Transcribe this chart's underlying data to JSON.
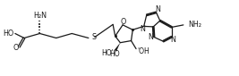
{
  "bg_color": "#ffffff",
  "line_color": "#1a1a1a",
  "line_width": 0.9,
  "font_size": 5.8,
  "figsize": [
    2.67,
    0.85
  ],
  "dpi": 100,
  "xlim": [
    0,
    10.5
  ],
  "ylim": [
    0,
    3.3
  ]
}
